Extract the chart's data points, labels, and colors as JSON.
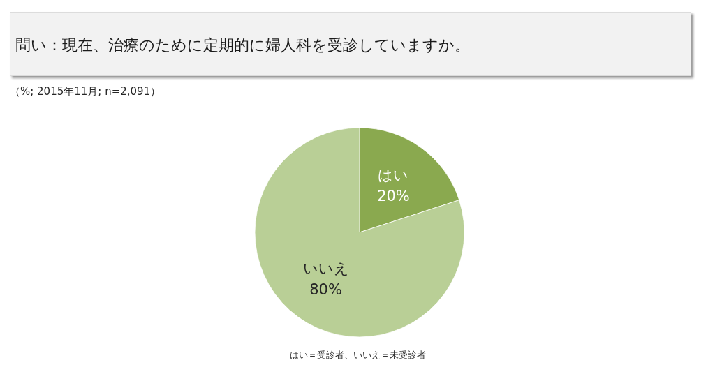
{
  "chart_data": {
    "type": "pie",
    "title": "問い：現在、治療のために定期的に婦人科を受診していますか。",
    "subtitle": "（%; 2015年11月; n=2,091）",
    "categories": [
      "はい",
      "いいえ"
    ],
    "values": [
      20,
      80
    ],
    "value_labels": [
      "20%",
      "80%"
    ],
    "colors": [
      "#8aa94f",
      "#b9cf96"
    ],
    "annotations": [
      "はい＝受診者、いいえ＝未受診者"
    ]
  }
}
